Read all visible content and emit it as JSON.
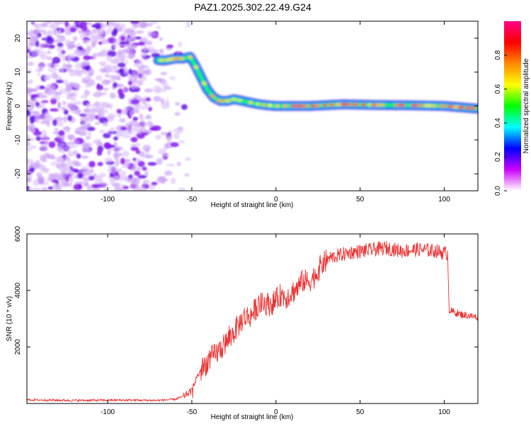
{
  "title": "PAZ1.2025.302.22.49.G24",
  "chart_data": [
    {
      "type": "heatmap",
      "name": "spectrogram",
      "xlabel": "Height of straight line (km)",
      "ylabel": "Frequency (Hz)",
      "xlim": [
        -148,
        120
      ],
      "ylim": [
        -25,
        25
      ],
      "xticks": [
        -100,
        -50,
        0,
        50,
        100
      ],
      "yticks": [
        -20,
        -10,
        0,
        10,
        20
      ],
      "xtick_labels": [
        "-100",
        "-50",
        "0",
        "50",
        "100"
      ],
      "ytick_labels": [
        "-20",
        "-10",
        "0",
        "10",
        "20"
      ],
      "noise_region_x": [
        -148,
        -52
      ],
      "ridge": {
        "x": [
          -70,
          -65,
          -60,
          -55,
          -51,
          -48,
          -45,
          -41,
          -37,
          -33,
          -29,
          -25,
          -20,
          -15,
          -10,
          -5,
          0,
          20,
          40,
          60,
          80,
          100,
          120
        ],
        "frequency": [
          13.5,
          13.5,
          14,
          14,
          14.5,
          12,
          9,
          5,
          2.5,
          1.5,
          1.5,
          2,
          1.5,
          1,
          0.5,
          0.2,
          0,
          0,
          0.5,
          0.3,
          0.2,
          0,
          -0.8
        ]
      },
      "colorbar": {
        "label": "Normalized spectral amplitude",
        "range": [
          0,
          1
        ],
        "ticks": [
          0.0,
          0.2,
          0.4,
          0.6,
          0.8
        ],
        "tick_labels": [
          "0.0",
          "0.2",
          "0.4",
          "0.6",
          "0.8"
        ],
        "colors": [
          "#ffffff",
          "#cc00ff",
          "#0000ff",
          "#00ffff",
          "#00ff00",
          "#ffff00",
          "#ff8800",
          "#ff0000",
          "#ff0088"
        ]
      }
    },
    {
      "type": "line",
      "name": "snr",
      "xlabel": "Height of straight line (km)",
      "ylabel": "SNR (10 * v/v)",
      "xlim": [
        -148,
        120
      ],
      "ylim": [
        0,
        6000
      ],
      "xticks": [
        -100,
        -50,
        0,
        50,
        100
      ],
      "yticks": [
        2000,
        4000,
        6000
      ],
      "xtick_labels": [
        "-100",
        "-50",
        "0",
        "50",
        "100"
      ],
      "ytick_labels": [
        "2000",
        "4000",
        "6000"
      ],
      "line_color": "#e83030",
      "series": [
        {
          "name": "SNR",
          "x": [
            -148,
            -120,
            -90,
            -70,
            -60,
            -55,
            -50,
            -47,
            -44,
            -41,
            -38,
            -35,
            -31,
            -27,
            -23,
            -19,
            -15,
            -11,
            -7,
            -3,
            0,
            3,
            6,
            10,
            13,
            16,
            19,
            23,
            27,
            32,
            38,
            45,
            55,
            65,
            75,
            85,
            95,
            102,
            103,
            105,
            110,
            115,
            120
          ],
          "y": [
            130,
            110,
            120,
            110,
            150,
            250,
            450,
            950,
            1200,
            1450,
            1650,
            1800,
            2050,
            2350,
            2700,
            3050,
            3100,
            3450,
            3550,
            3500,
            3650,
            3850,
            3750,
            3950,
            4100,
            4350,
            4300,
            4500,
            4900,
            5150,
            5250,
            5350,
            5420,
            5500,
            5400,
            5450,
            5400,
            5300,
            3300,
            3250,
            3150,
            3100,
            3050
          ]
        }
      ]
    }
  ]
}
